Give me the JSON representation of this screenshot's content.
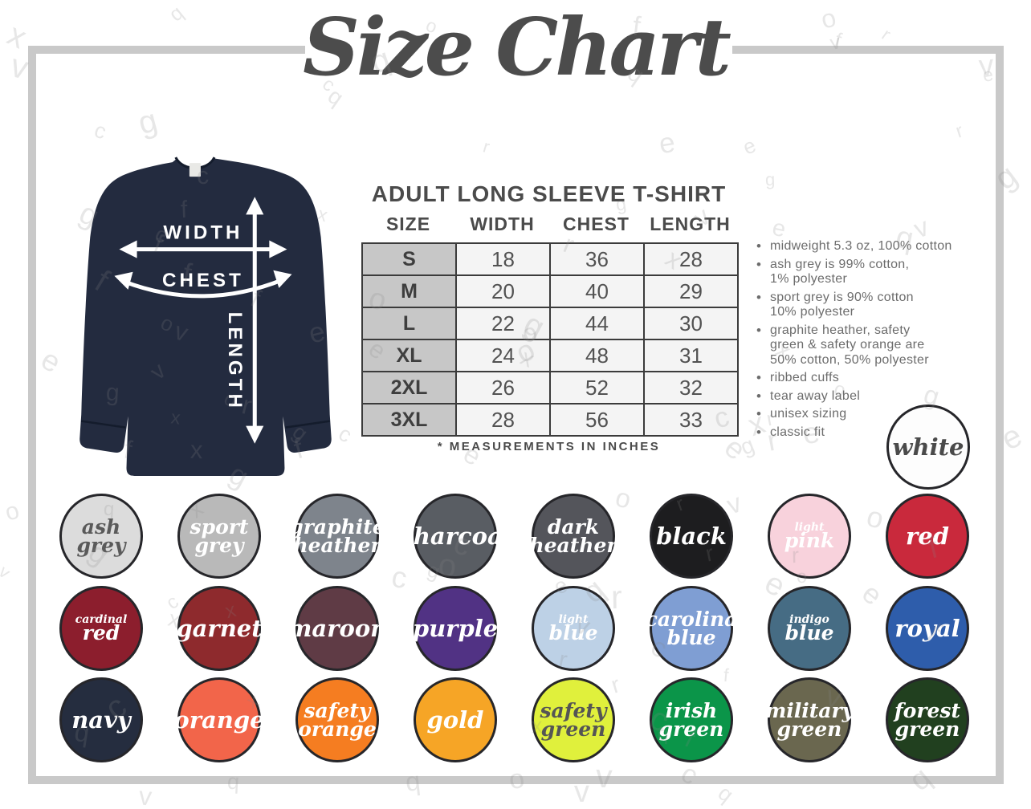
{
  "title": "Size Chart",
  "diagram": {
    "width_label": "WIDTH",
    "chest_label": "CHEST",
    "length_label": "LENGTH",
    "shirt_color": "#232b3f"
  },
  "size_chart": {
    "heading": "ADULT LONG SLEEVE T-SHIRT",
    "columns": [
      "SIZE",
      "WIDTH",
      "CHEST",
      "LENGTH"
    ],
    "rows": [
      [
        "S",
        "18",
        "36",
        "28"
      ],
      [
        "M",
        "20",
        "40",
        "29"
      ],
      [
        "L",
        "22",
        "44",
        "30"
      ],
      [
        "XL",
        "24",
        "48",
        "31"
      ],
      [
        "2XL",
        "26",
        "52",
        "32"
      ],
      [
        "3XL",
        "28",
        "56",
        "33"
      ]
    ],
    "footnote": "* MEASUREMENTS IN INCHES"
  },
  "features": [
    "midweight 5.3 oz, 100% cotton",
    "ash grey is 99% cotton,\n1% polyester",
    "sport grey is 90% cotton\n10% polyester",
    "graphite heather, safety\ngreen & safety orange are\n50% cotton, 50% polyester",
    "ribbed cuffs",
    "tear away label",
    "unisex sizing",
    "classic fit"
  ],
  "swatches": {
    "featured": {
      "name": "white",
      "lines": [
        [
          "white",
          "lg"
        ]
      ],
      "bg": "#fdfdfd",
      "fg": "#4a4a4a"
    },
    "items": [
      {
        "name": "ash grey",
        "lines": [
          [
            "ash",
            "lg"
          ],
          [
            "grey",
            "lg"
          ]
        ],
        "bg": "#dcdcdc",
        "fg": "#5a5a5a"
      },
      {
        "name": "sport grey",
        "lines": [
          [
            "sport",
            "lg"
          ],
          [
            "grey",
            "lg"
          ]
        ],
        "bg": "#b9b9b9",
        "fg": "#ffffff"
      },
      {
        "name": "graphite heather",
        "lines": [
          [
            "graphite",
            "lg"
          ],
          [
            "heather",
            "lg"
          ]
        ],
        "bg": "#7e848c",
        "fg": "#ffffff"
      },
      {
        "name": "charcoal",
        "lines": [
          [
            "charcoal",
            "lg"
          ]
        ],
        "bg": "#595d63",
        "fg": "#ffffff"
      },
      {
        "name": "dark heather",
        "lines": [
          [
            "dark",
            "lg"
          ],
          [
            "heather",
            "lg"
          ]
        ],
        "bg": "#54555b",
        "fg": "#ffffff"
      },
      {
        "name": "black",
        "lines": [
          [
            "black",
            "lg"
          ]
        ],
        "bg": "#1d1d1f",
        "fg": "#ffffff"
      },
      {
        "name": "light pink",
        "lines": [
          [
            "light",
            "sm"
          ],
          [
            "pink",
            "lg"
          ]
        ],
        "bg": "#f8d2dc",
        "fg": "#ffffff"
      },
      {
        "name": "red",
        "lines": [
          [
            "red",
            "lg"
          ]
        ],
        "bg": "#c9293c",
        "fg": "#ffffff"
      },
      {
        "name": "cardinal red",
        "lines": [
          [
            "cardinal",
            "sm"
          ],
          [
            "red",
            "lg"
          ]
        ],
        "bg": "#8c1e2d",
        "fg": "#ffffff"
      },
      {
        "name": "garnet",
        "lines": [
          [
            "garnet",
            "lg"
          ]
        ],
        "bg": "#8e2a2d",
        "fg": "#ffffff"
      },
      {
        "name": "maroon",
        "lines": [
          [
            "maroon",
            "lg"
          ]
        ],
        "bg": "#5f3b45",
        "fg": "#ffffff"
      },
      {
        "name": "purple",
        "lines": [
          [
            "purple",
            "lg"
          ]
        ],
        "bg": "#513284",
        "fg": "#ffffff"
      },
      {
        "name": "light blue",
        "lines": [
          [
            "light",
            "sm"
          ],
          [
            "blue",
            "lg"
          ]
        ],
        "bg": "#bdd1e6",
        "fg": "#ffffff"
      },
      {
        "name": "carolina blue",
        "lines": [
          [
            "carolina",
            "lg"
          ],
          [
            "blue",
            "lg"
          ]
        ],
        "bg": "#7f9ed3",
        "fg": "#ffffff"
      },
      {
        "name": "indigo blue",
        "lines": [
          [
            "indigo",
            "sm"
          ],
          [
            "blue",
            "lg"
          ]
        ],
        "bg": "#466c84",
        "fg": "#ffffff"
      },
      {
        "name": "royal",
        "lines": [
          [
            "royal",
            "lg"
          ]
        ],
        "bg": "#2e5dab",
        "fg": "#ffffff"
      },
      {
        "name": "navy",
        "lines": [
          [
            "navy",
            "lg"
          ]
        ],
        "bg": "#252d3f",
        "fg": "#ffffff"
      },
      {
        "name": "orange",
        "lines": [
          [
            "orange",
            "lg"
          ]
        ],
        "bg": "#f2654a",
        "fg": "#ffffff"
      },
      {
        "name": "safety orange",
        "lines": [
          [
            "safety",
            "lg"
          ],
          [
            "orange",
            "lg"
          ]
        ],
        "bg": "#f57d21",
        "fg": "#ffffff"
      },
      {
        "name": "gold",
        "lines": [
          [
            "gold",
            "lg"
          ]
        ],
        "bg": "#f6a526",
        "fg": "#ffffff"
      },
      {
        "name": "safety green",
        "lines": [
          [
            "safety",
            "lg"
          ],
          [
            "green",
            "lg"
          ]
        ],
        "bg": "#e0f03c",
        "fg": "#555555"
      },
      {
        "name": "irish green",
        "lines": [
          [
            "irish",
            "lg"
          ],
          [
            "green",
            "lg"
          ]
        ],
        "bg": "#0b9549",
        "fg": "#ffffff"
      },
      {
        "name": "military green",
        "lines": [
          [
            "military",
            "lg"
          ],
          [
            "green",
            "lg"
          ]
        ],
        "bg": "#6a674f",
        "fg": "#ffffff"
      },
      {
        "name": "forest green",
        "lines": [
          [
            "forest",
            "lg"
          ],
          [
            "green",
            "lg"
          ]
        ],
        "bg": "#21401f",
        "fg": "#ffffff"
      }
    ]
  },
  "watermark": {
    "letters": [
      "v",
      "o",
      "e",
      "r",
      "g",
      "x",
      "f",
      "q",
      "c"
    ]
  }
}
